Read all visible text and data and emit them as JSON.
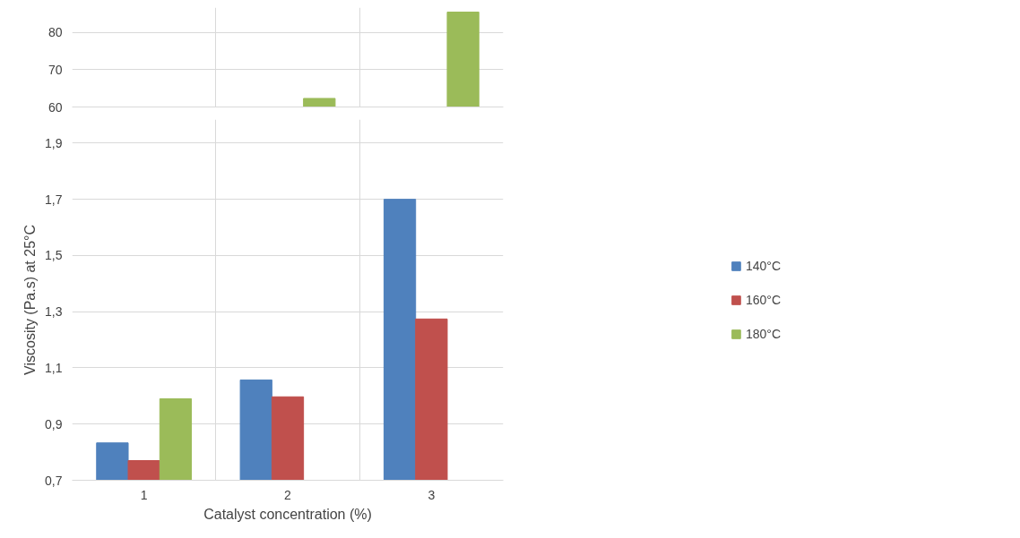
{
  "chart_data": [
    {
      "type": "bar",
      "categories": [
        "1",
        "2",
        "3"
      ],
      "ylim": [
        60,
        86.7
      ],
      "yticks": [
        60,
        70,
        80
      ],
      "grid": true,
      "tick_labels": "y",
      "series": [
        {
          "color": "#4f81bd",
          "values": [
            null,
            null,
            null
          ]
        },
        {
          "color": "#c0504d",
          "values": [
            null,
            null,
            null
          ]
        },
        {
          "color": "#9bbb59",
          "values": [
            null,
            62.3,
            85.5
          ]
        }
      ]
    },
    {
      "type": "bar",
      "categories": [
        "1",
        "2",
        "3"
      ],
      "xlabel": "Catalyst concentration (%)",
      "ylabel": "Viscosity (Pa.s) at 25°C",
      "ylim": [
        0.7,
        1.984
      ],
      "yticks": [
        {
          "value": 0.7,
          "label": "0,7"
        },
        {
          "value": 0.9,
          "label": "0,9"
        },
        {
          "value": 1.1,
          "label": "1,1"
        },
        {
          "value": 1.3,
          "label": "1,3"
        },
        {
          "value": 1.5,
          "label": "1,5"
        },
        {
          "value": 1.7,
          "label": "1,7"
        },
        {
          "value": 1.9,
          "label": "1,9"
        }
      ],
      "grid": true,
      "legend": "right",
      "series": [
        {
          "name": "140°C",
          "color": "#4f81bd",
          "values": [
            0.833,
            1.057,
            1.7
          ]
        },
        {
          "name": "160°C",
          "color": "#c0504d",
          "values": [
            0.77,
            0.997,
            1.274
          ]
        },
        {
          "name": "180°C",
          "color": "#9bbb59",
          "values": [
            0.99,
            null,
            null
          ]
        }
      ]
    }
  ]
}
